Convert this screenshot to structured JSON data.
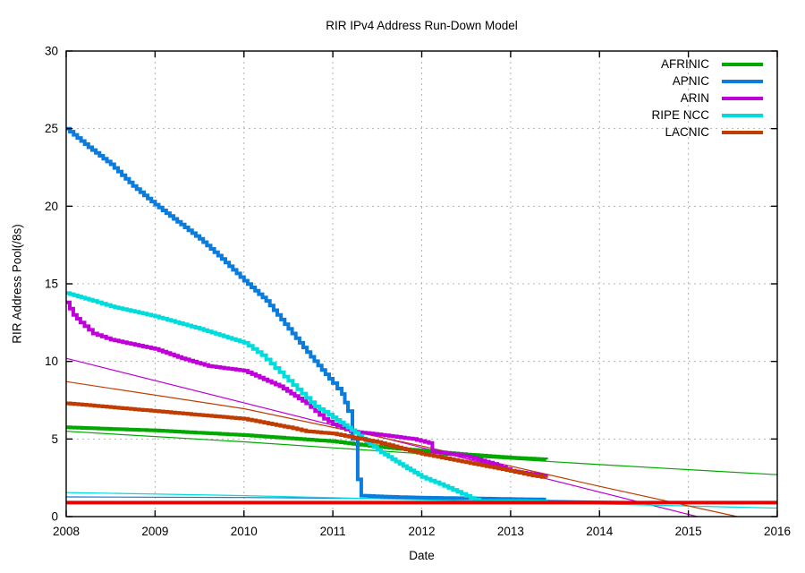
{
  "chart_data": {
    "type": "line",
    "title": "RIR IPv4 Address Run-Down Model",
    "xlabel": "Date",
    "ylabel": "RIR Address Pool(/8s)",
    "xlim": [
      2008,
      2016
    ],
    "ylim": [
      0,
      30
    ],
    "xticks": [
      2008,
      2009,
      2010,
      2011,
      2012,
      2013,
      2014,
      2015,
      2016
    ],
    "xtick_labels": [
      "2008",
      "2009",
      "2010",
      "2011",
      "2012",
      "2013",
      "2014",
      "2015",
      "2016"
    ],
    "yticks": [
      0,
      5,
      10,
      15,
      20,
      25,
      30
    ],
    "ytick_labels": [
      "0",
      "5",
      "10",
      "15",
      "20",
      "25",
      "30"
    ],
    "grid": true,
    "grid_color": "#b3b3b3",
    "legend_position": "top-right",
    "series": [
      {
        "name": "AFRINIC model",
        "role": "model",
        "color": "#00a800",
        "width": 1.2,
        "stepped": false,
        "in_legend": false,
        "points": [
          [
            2008,
            5.5
          ],
          [
            2010,
            4.82
          ],
          [
            2012,
            4.05
          ],
          [
            2014,
            3.35
          ],
          [
            2016,
            2.7
          ]
        ]
      },
      {
        "name": "APNIC model",
        "role": "model",
        "color": "#0b7cdc",
        "width": 1.2,
        "stepped": false,
        "in_legend": false,
        "points": [
          [
            2008,
            1.27
          ],
          [
            2010,
            1.23
          ],
          [
            2012,
            1.15
          ],
          [
            2014,
            1.0
          ],
          [
            2016,
            0.85
          ]
        ]
      },
      {
        "name": "ARIN model",
        "role": "model",
        "color": "#c000d8",
        "width": 1.2,
        "stepped": false,
        "in_legend": false,
        "points": [
          [
            2008,
            10.2
          ],
          [
            2015.1,
            0
          ]
        ]
      },
      {
        "name": "RIPE model",
        "role": "model",
        "color": "#00dcdc",
        "width": 1.2,
        "stepped": false,
        "in_legend": false,
        "points": [
          [
            2008,
            1.55
          ],
          [
            2010,
            1.35
          ],
          [
            2012.65,
            1.0
          ],
          [
            2016,
            0.55
          ]
        ]
      },
      {
        "name": "LACNIC model",
        "role": "model",
        "color": "#c03c00",
        "width": 1.2,
        "stepped": false,
        "in_legend": false,
        "points": [
          [
            2008,
            8.7
          ],
          [
            2010,
            6.95
          ],
          [
            2012,
            4.55
          ],
          [
            2014,
            1.95
          ],
          [
            2015.55,
            0
          ]
        ]
      },
      {
        "name": "AFRINIC",
        "role": "data",
        "color": "#00a800",
        "width": 4,
        "stepped": true,
        "in_legend": true,
        "points": [
          [
            2008,
            5.75
          ],
          [
            2008.5,
            5.65
          ],
          [
            2009,
            5.55
          ],
          [
            2009.5,
            5.4
          ],
          [
            2010,
            5.25
          ],
          [
            2010.5,
            5.05
          ],
          [
            2011,
            4.85
          ],
          [
            2011.5,
            4.5
          ],
          [
            2012,
            4.25
          ],
          [
            2012.5,
            4.0
          ],
          [
            2013,
            3.8
          ],
          [
            2013.4,
            3.68
          ]
        ]
      },
      {
        "name": "APNIC",
        "role": "data",
        "color": "#0b7cdc",
        "width": 4,
        "stepped": true,
        "in_legend": true,
        "points": [
          [
            2008,
            25.0
          ],
          [
            2008.25,
            23.8
          ],
          [
            2008.5,
            22.7
          ],
          [
            2008.75,
            21.3
          ],
          [
            2009,
            20.1
          ],
          [
            2009.25,
            19.0
          ],
          [
            2009.5,
            17.9
          ],
          [
            2009.75,
            16.6
          ],
          [
            2010,
            15.2
          ],
          [
            2010.25,
            13.9
          ],
          [
            2010.5,
            12.1
          ],
          [
            2010.75,
            10.3
          ],
          [
            2011,
            8.6
          ],
          [
            2011.1,
            7.9
          ],
          [
            2011.17,
            6.8
          ],
          [
            2011.22,
            5.0
          ],
          [
            2011.28,
            2.4
          ],
          [
            2011.32,
            1.35
          ],
          [
            2011.6,
            1.28
          ],
          [
            2012,
            1.22
          ],
          [
            2012.5,
            1.18
          ],
          [
            2013,
            1.13
          ],
          [
            2013.4,
            1.1
          ]
        ]
      },
      {
        "name": "ARIN",
        "role": "data",
        "color": "#c000d8",
        "width": 4,
        "stepped": true,
        "in_legend": true,
        "points": [
          [
            2008,
            13.8
          ],
          [
            2008.08,
            13.0
          ],
          [
            2008.16,
            12.5
          ],
          [
            2008.3,
            11.8
          ],
          [
            2008.5,
            11.4
          ],
          [
            2009,
            10.8
          ],
          [
            2009.3,
            10.2
          ],
          [
            2009.6,
            9.7
          ],
          [
            2010,
            9.4
          ],
          [
            2010.4,
            8.4
          ],
          [
            2010.7,
            7.3
          ],
          [
            2010.9,
            6.3
          ],
          [
            2011,
            5.95
          ],
          [
            2011.2,
            5.5
          ],
          [
            2011.5,
            5.3
          ],
          [
            2011.9,
            5.0
          ],
          [
            2012.08,
            4.75
          ],
          [
            2012.12,
            4.2
          ],
          [
            2012.5,
            3.9
          ],
          [
            2012.8,
            3.4
          ],
          [
            2013,
            2.95
          ],
          [
            2013.4,
            2.6
          ]
        ]
      },
      {
        "name": "RIPE NCC",
        "role": "data",
        "color": "#00dcdc",
        "width": 4,
        "stepped": true,
        "in_legend": true,
        "points": [
          [
            2008,
            14.4
          ],
          [
            2008.3,
            13.9
          ],
          [
            2008.5,
            13.55
          ],
          [
            2009,
            12.9
          ],
          [
            2009.5,
            12.1
          ],
          [
            2010,
            11.2
          ],
          [
            2010.2,
            10.4
          ],
          [
            2010.4,
            9.3
          ],
          [
            2010.6,
            8.2
          ],
          [
            2010.8,
            7.1
          ],
          [
            2011,
            6.4
          ],
          [
            2011.25,
            5.4
          ],
          [
            2011.5,
            4.3
          ],
          [
            2011.75,
            3.4
          ],
          [
            2012,
            2.55
          ],
          [
            2012.2,
            2.1
          ],
          [
            2012.4,
            1.6
          ],
          [
            2012.55,
            1.2
          ],
          [
            2012.65,
            1.0
          ],
          [
            2013,
            1.0
          ],
          [
            2013.4,
            0.97
          ]
        ]
      },
      {
        "name": "LACNIC",
        "role": "data",
        "color": "#c03c00",
        "width": 4,
        "stepped": true,
        "in_legend": true,
        "points": [
          [
            2008,
            7.3
          ],
          [
            2008.5,
            7.05
          ],
          [
            2009,
            6.8
          ],
          [
            2009.5,
            6.55
          ],
          [
            2010,
            6.3
          ],
          [
            2010.5,
            5.75
          ],
          [
            2010.7,
            5.5
          ],
          [
            2011,
            5.35
          ],
          [
            2011.5,
            4.8
          ],
          [
            2012,
            4.05
          ],
          [
            2012.5,
            3.5
          ],
          [
            2013,
            2.95
          ],
          [
            2013.2,
            2.7
          ],
          [
            2013.4,
            2.5
          ]
        ]
      },
      {
        "name": "threshold",
        "role": "threshold",
        "color": "#e60000",
        "width": 4,
        "stepped": false,
        "in_legend": false,
        "points": [
          [
            2008,
            0.9
          ],
          [
            2016,
            0.9
          ]
        ]
      }
    ]
  }
}
